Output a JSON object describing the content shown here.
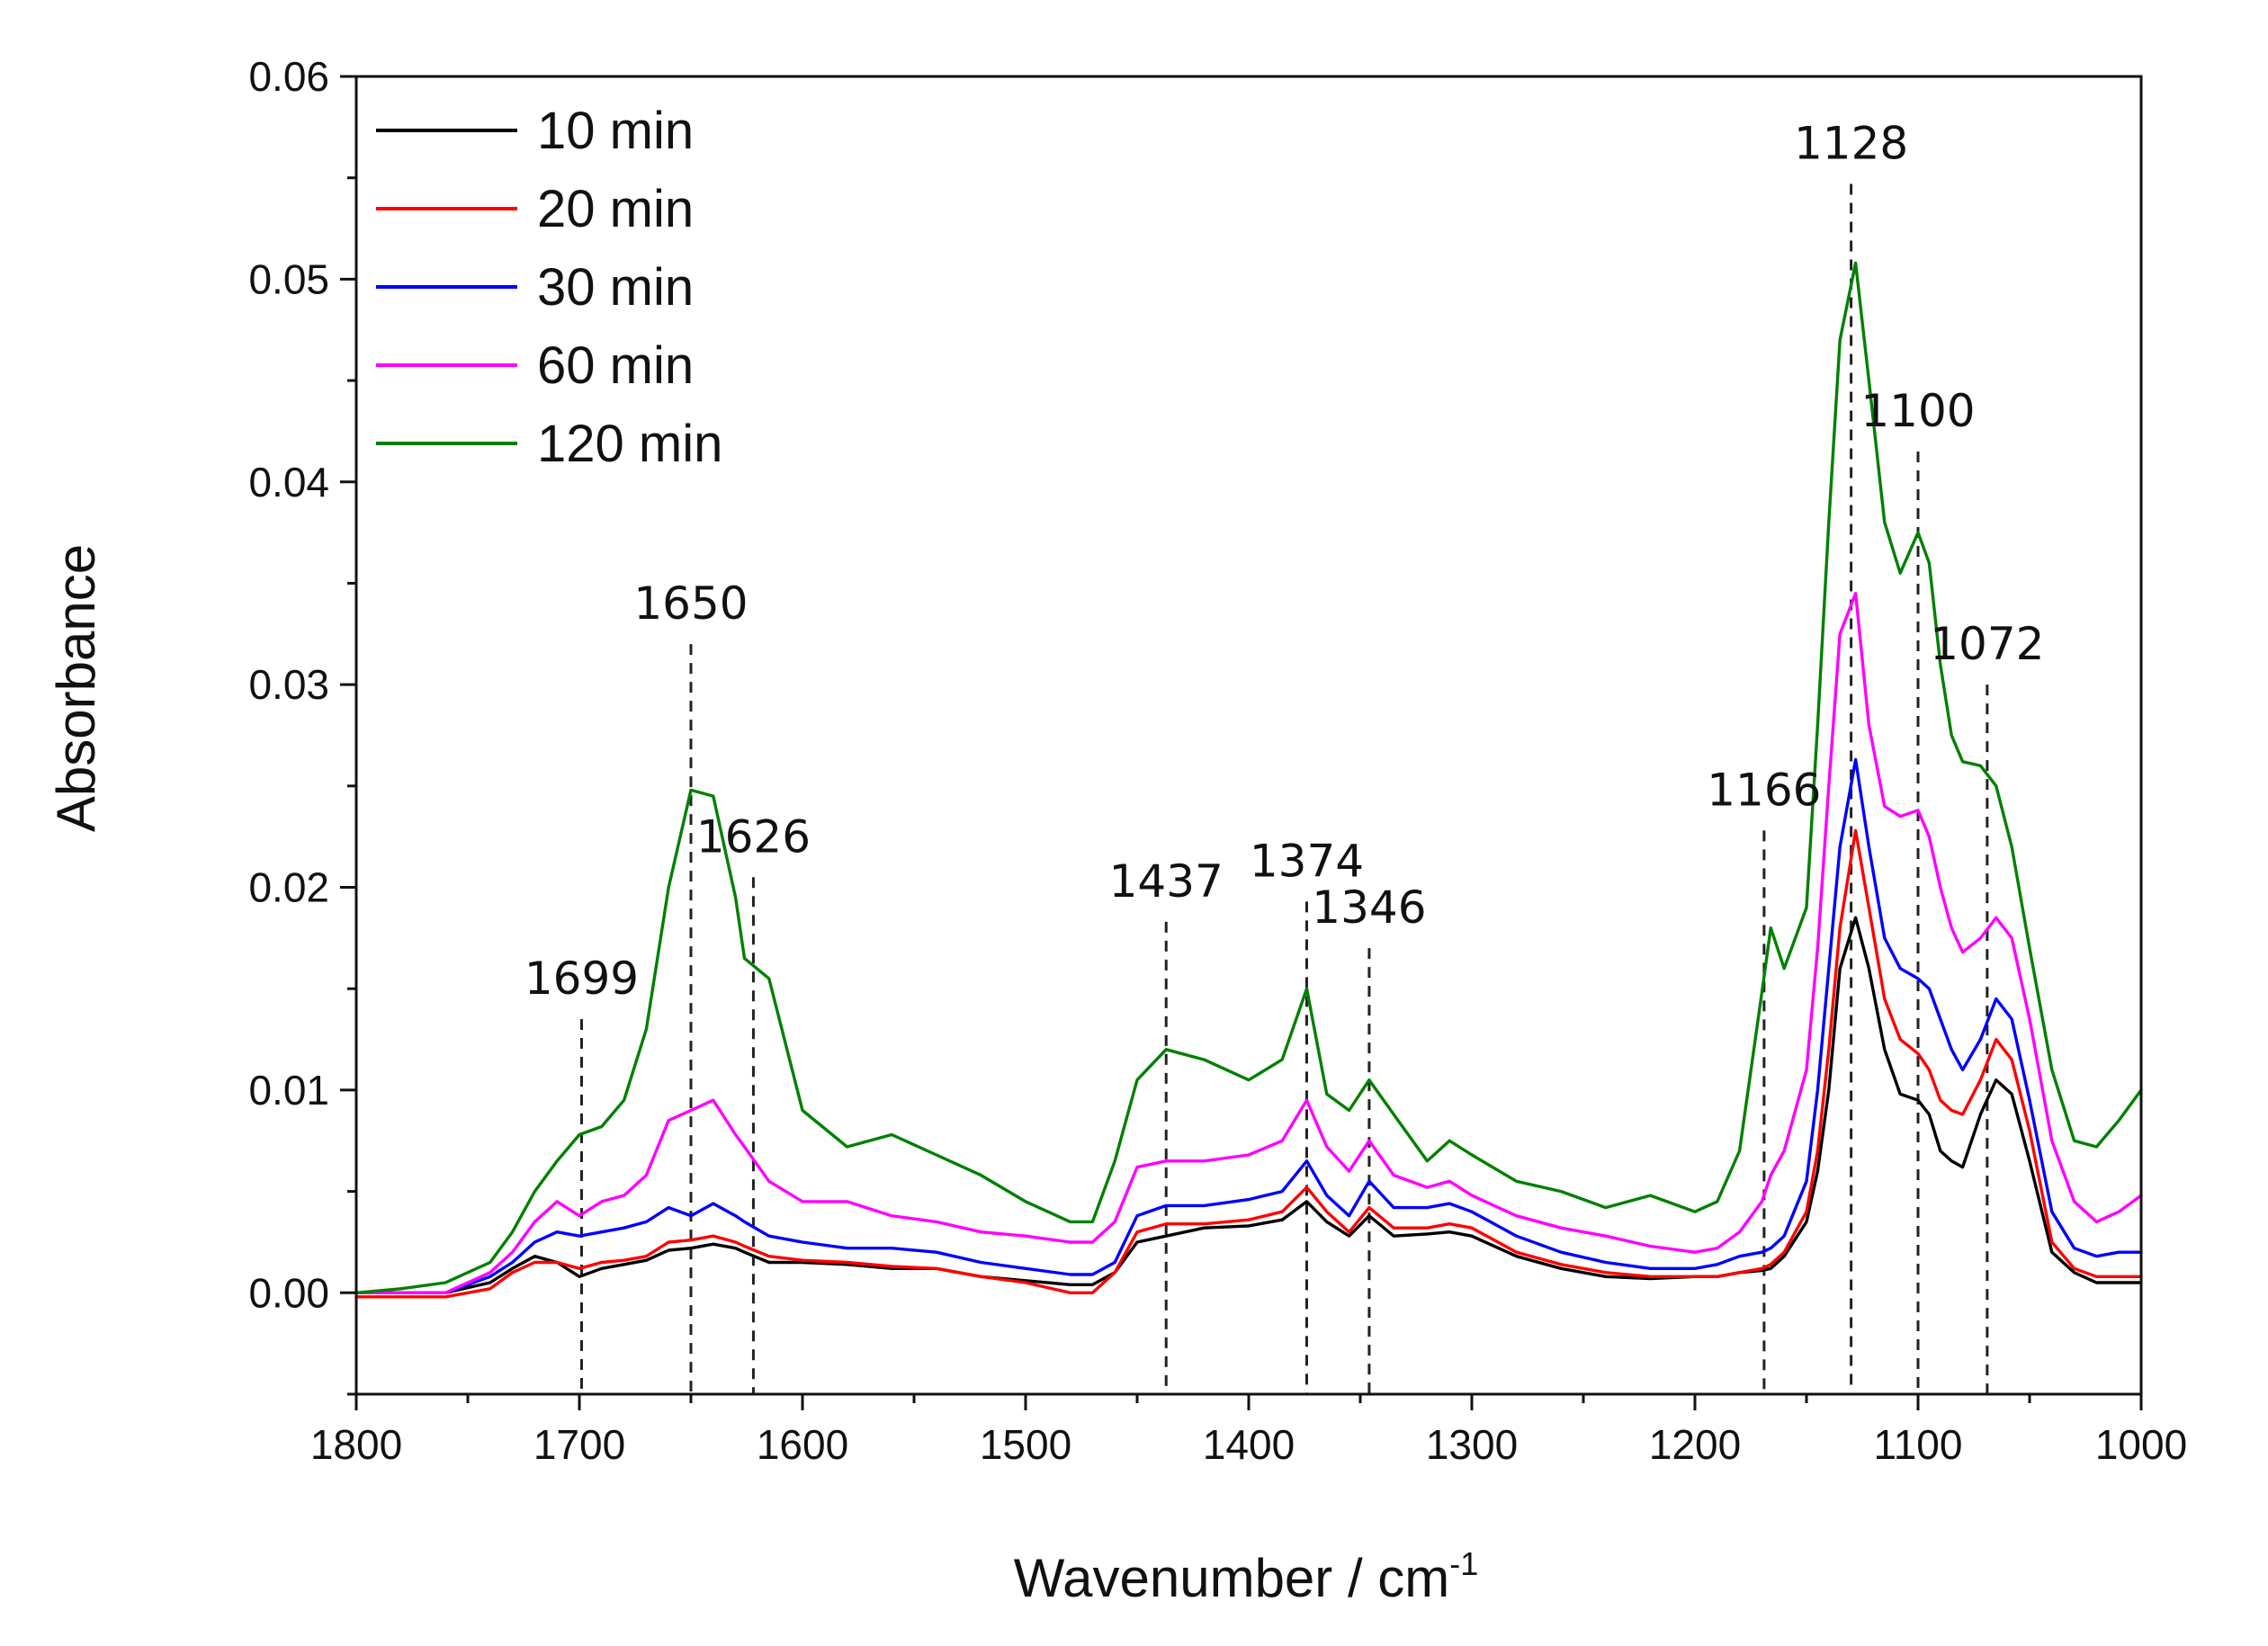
{
  "chart_data": {
    "type": "line",
    "title": "",
    "xlabel": "Wavenumber / cm",
    "xlabel_superscript": "-1",
    "ylabel": "Absorbance",
    "xlim": [
      1800,
      1000
    ],
    "ylim": [
      -0.005,
      0.06
    ],
    "x_ticks": [
      1800,
      1700,
      1600,
      1500,
      1400,
      1300,
      1200,
      1100,
      1000
    ],
    "x_tick_labels": [
      "1800",
      "1700",
      "1600",
      "1500",
      "1400",
      "1300",
      "1200",
      "1100",
      "1000"
    ],
    "y_ticks": [
      0,
      0.01,
      0.02,
      0.03,
      0.04,
      0.05,
      0.06
    ],
    "y_tick_labels": [
      "0.00",
      "0.01",
      "0.02",
      "0.03",
      "0.04",
      "0.05",
      "0.06"
    ],
    "grid": false,
    "legend_position": "top-left",
    "x": [
      1800,
      1780,
      1760,
      1740,
      1730,
      1720,
      1710,
      1700,
      1690,
      1680,
      1670,
      1660,
      1650,
      1640,
      1630,
      1626,
      1615,
      1600,
      1580,
      1560,
      1540,
      1520,
      1500,
      1480,
      1470,
      1460,
      1450,
      1437,
      1420,
      1400,
      1385,
      1374,
      1365,
      1355,
      1346,
      1335,
      1320,
      1310,
      1300,
      1280,
      1260,
      1240,
      1220,
      1200,
      1190,
      1180,
      1170,
      1166,
      1160,
      1150,
      1145,
      1140,
      1135,
      1128,
      1122,
      1115,
      1108,
      1100,
      1095,
      1090,
      1085,
      1080,
      1072,
      1065,
      1058,
      1050,
      1040,
      1030,
      1020,
      1010,
      1000
    ],
    "series": [
      {
        "name": "10 min",
        "color": "#000000",
        "values": [
          0.0,
          0.0,
          0.0,
          0.0005,
          0.0012,
          0.0018,
          0.0015,
          0.0008,
          0.0012,
          0.0014,
          0.0016,
          0.0021,
          0.0022,
          0.0024,
          0.0022,
          0.002,
          0.0015,
          0.0015,
          0.0014,
          0.0012,
          0.0012,
          0.0008,
          0.0006,
          0.0004,
          0.0004,
          0.001,
          0.0025,
          0.0028,
          0.0032,
          0.0033,
          0.0036,
          0.0045,
          0.0035,
          0.0028,
          0.0038,
          0.0028,
          0.0029,
          0.003,
          0.0028,
          0.0018,
          0.0012,
          0.0008,
          0.0007,
          0.0008,
          0.0008,
          0.001,
          0.0011,
          0.0012,
          0.0018,
          0.0035,
          0.006,
          0.01,
          0.016,
          0.0185,
          0.016,
          0.012,
          0.0098,
          0.0095,
          0.0088,
          0.007,
          0.0065,
          0.0062,
          0.0088,
          0.0105,
          0.0098,
          0.0065,
          0.002,
          0.001,
          0.0005,
          0.0005,
          0.0005
        ]
      },
      {
        "name": "20 min",
        "color": "#ff0000",
        "values": [
          -0.0002,
          -0.0002,
          -0.0002,
          0.0002,
          0.001,
          0.0015,
          0.0015,
          0.0012,
          0.0015,
          0.0016,
          0.0018,
          0.0025,
          0.0026,
          0.0028,
          0.0025,
          0.0023,
          0.0018,
          0.0016,
          0.0015,
          0.0013,
          0.0012,
          0.0008,
          0.0005,
          0.0,
          0.0,
          0.001,
          0.003,
          0.0034,
          0.0034,
          0.0036,
          0.004,
          0.0052,
          0.004,
          0.003,
          0.0042,
          0.0032,
          0.0032,
          0.0034,
          0.0032,
          0.002,
          0.0014,
          0.001,
          0.0008,
          0.0008,
          0.0008,
          0.001,
          0.0012,
          0.0014,
          0.002,
          0.004,
          0.007,
          0.012,
          0.018,
          0.0228,
          0.019,
          0.0145,
          0.0125,
          0.0118,
          0.011,
          0.0095,
          0.009,
          0.0088,
          0.0105,
          0.0125,
          0.0115,
          0.008,
          0.0025,
          0.0012,
          0.0008,
          0.0008,
          0.0008
        ]
      },
      {
        "name": "30 min",
        "color": "#0000ff",
        "values": [
          0.0,
          0.0,
          0.0,
          0.0008,
          0.0015,
          0.0025,
          0.003,
          0.0028,
          0.003,
          0.0032,
          0.0035,
          0.0042,
          0.0038,
          0.0044,
          0.0038,
          0.0035,
          0.0028,
          0.0025,
          0.0022,
          0.0022,
          0.002,
          0.0015,
          0.0012,
          0.0009,
          0.0009,
          0.0015,
          0.0038,
          0.0043,
          0.0043,
          0.0046,
          0.005,
          0.0065,
          0.0048,
          0.0038,
          0.0055,
          0.0042,
          0.0042,
          0.0044,
          0.004,
          0.0028,
          0.002,
          0.0015,
          0.0012,
          0.0012,
          0.0014,
          0.0018,
          0.002,
          0.0022,
          0.0028,
          0.0055,
          0.01,
          0.016,
          0.022,
          0.0263,
          0.022,
          0.0175,
          0.016,
          0.0155,
          0.015,
          0.0135,
          0.012,
          0.011,
          0.0125,
          0.0145,
          0.0135,
          0.0095,
          0.004,
          0.0022,
          0.0018,
          0.002,
          0.002
        ]
      },
      {
        "name": "60 min",
        "color": "#ff00ff",
        "values": [
          0.0,
          0.0,
          0.0,
          0.001,
          0.002,
          0.0035,
          0.0045,
          0.0038,
          0.0045,
          0.0048,
          0.0058,
          0.0085,
          0.009,
          0.0095,
          0.0078,
          0.0072,
          0.0055,
          0.0045,
          0.0045,
          0.0038,
          0.0035,
          0.003,
          0.0028,
          0.0025,
          0.0025,
          0.0035,
          0.0062,
          0.0065,
          0.0065,
          0.0068,
          0.0075,
          0.0095,
          0.0072,
          0.006,
          0.0075,
          0.0058,
          0.0052,
          0.0055,
          0.0048,
          0.0038,
          0.0032,
          0.0028,
          0.0023,
          0.002,
          0.0022,
          0.003,
          0.0045,
          0.0058,
          0.007,
          0.011,
          0.017,
          0.025,
          0.0325,
          0.0345,
          0.028,
          0.024,
          0.0235,
          0.0238,
          0.0225,
          0.02,
          0.018,
          0.0168,
          0.0175,
          0.0185,
          0.0175,
          0.0135,
          0.0075,
          0.0045,
          0.0035,
          0.004,
          0.0048
        ]
      },
      {
        "name": "120 min",
        "color": "#008000",
        "values": [
          0.0,
          0.0002,
          0.0005,
          0.0015,
          0.003,
          0.005,
          0.0065,
          0.0078,
          0.0082,
          0.0095,
          0.013,
          0.02,
          0.0248,
          0.0245,
          0.0195,
          0.0165,
          0.0155,
          0.009,
          0.0072,
          0.0078,
          0.0068,
          0.0058,
          0.0045,
          0.0035,
          0.0035,
          0.0065,
          0.0105,
          0.012,
          0.0115,
          0.0105,
          0.0115,
          0.015,
          0.0098,
          0.009,
          0.0105,
          0.0088,
          0.0065,
          0.0075,
          0.0068,
          0.0055,
          0.005,
          0.0042,
          0.0048,
          0.004,
          0.0045,
          0.007,
          0.0148,
          0.018,
          0.016,
          0.019,
          0.028,
          0.038,
          0.047,
          0.0508,
          0.045,
          0.038,
          0.0355,
          0.0375,
          0.036,
          0.031,
          0.0275,
          0.0262,
          0.026,
          0.025,
          0.022,
          0.017,
          0.011,
          0.0075,
          0.0072,
          0.0085,
          0.01
        ]
      }
    ],
    "annotations": [
      {
        "label": "1699",
        "x": 1699,
        "line_top": 0.0135
      },
      {
        "label": "1650",
        "x": 1650,
        "line_top": 0.032
      },
      {
        "label": "1626",
        "x": 1622,
        "line_top": 0.0205
      },
      {
        "label": "1437",
        "x": 1437,
        "line_top": 0.0183
      },
      {
        "label": "1374",
        "x": 1374,
        "line_top": 0.0193
      },
      {
        "label": "1346",
        "x": 1346,
        "line_top": 0.017
      },
      {
        "label": "1166",
        "x": 1169,
        "line_top": 0.0228
      },
      {
        "label": "1128",
        "x": 1130,
        "line_top": 0.0547
      },
      {
        "label": "1100",
        "x": 1100,
        "line_top": 0.0415
      },
      {
        "label": "1072",
        "x": 1069,
        "line_top": 0.03
      }
    ]
  }
}
